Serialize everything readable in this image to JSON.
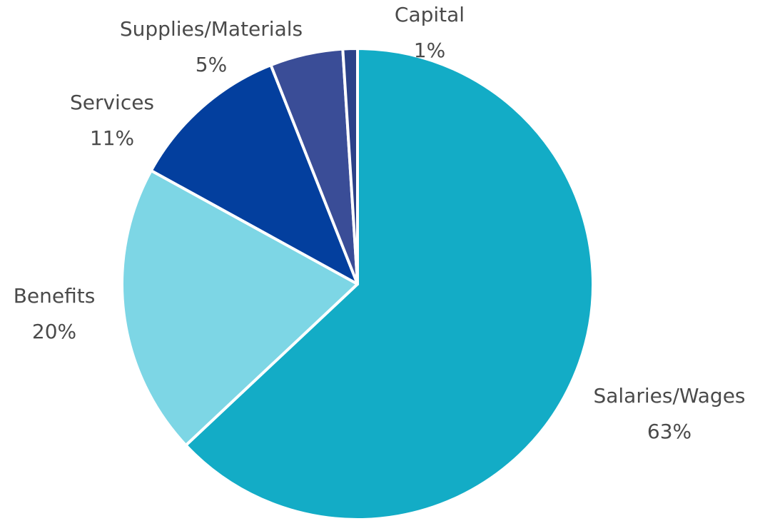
{
  "chart_data": {
    "type": "pie",
    "title": "",
    "slices": [
      {
        "label": "Salaries/Wages",
        "value": 63,
        "value_label": "63%",
        "color": "#13acc6"
      },
      {
        "label": "Benefits",
        "value": 20,
        "value_label": "20%",
        "color": "#7dd6e5"
      },
      {
        "label": "Services",
        "value": 11,
        "value_label": "11%",
        "color": "#033f9e"
      },
      {
        "label": "Supplies/Materials",
        "value": 5,
        "value_label": "5%",
        "color": "#3a4d97"
      },
      {
        "label": "Capital",
        "value": 1,
        "value_label": "1%",
        "color": "#2b4188"
      }
    ],
    "start_angle_deg": 0,
    "direction": "clockwise",
    "slice_border_color": "#ffffff",
    "label_color": "#4a4a4a"
  }
}
